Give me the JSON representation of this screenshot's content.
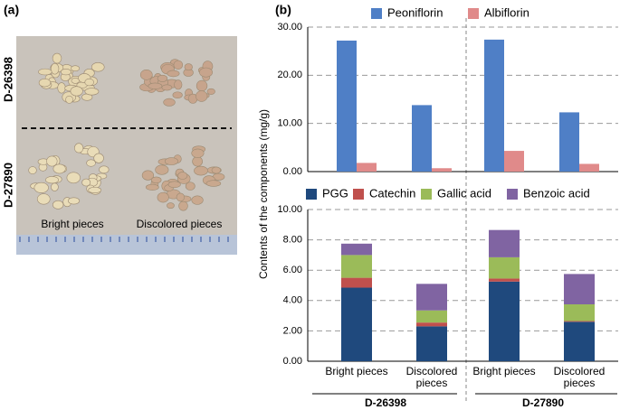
{
  "panel_a": {
    "label": "(a)",
    "rows": [
      "D-26398",
      "D-27890"
    ],
    "columns": [
      "Bright pieces",
      "Discolored pieces"
    ]
  },
  "panel_b": {
    "label": "(b)",
    "ylabel": "Contents of the components (mg/g)",
    "groups": [
      "D-26398",
      "D-27890"
    ]
  },
  "chart_data": [
    {
      "type": "bar",
      "categories": [
        null,
        null,
        null,
        null
      ],
      "series": [
        {
          "name": "Peoniflorin",
          "color": "#4f7fc6",
          "values": [
            27.2,
            13.8,
            27.4,
            12.3
          ]
        },
        {
          "name": "Albiflorin",
          "color": "#e08a8a",
          "values": [
            1.8,
            0.7,
            4.3,
            1.6
          ]
        }
      ],
      "ylim": [
        0,
        30
      ],
      "yticks": [
        {
          "value": 0,
          "label": "0.00"
        },
        {
          "value": 10,
          "label": "10.00"
        },
        {
          "value": 20,
          "label": "20.00"
        },
        {
          "value": 30,
          "label": "30.00"
        }
      ],
      "grid": true
    },
    {
      "type": "stacked-bar",
      "categories": [
        "Bright pieces",
        "Discolored pieces",
        "Bright pieces",
        "Discolored pieces"
      ],
      "series": [
        {
          "name": "PGG",
          "color": "#1f497d",
          "values": [
            4.85,
            2.3,
            5.25,
            2.6
          ]
        },
        {
          "name": "Catechin",
          "color": "#c0504d",
          "values": [
            0.65,
            0.25,
            0.2,
            0.05
          ]
        },
        {
          "name": "Gallic acid",
          "color": "#9bbb59",
          "values": [
            1.5,
            0.8,
            1.4,
            1.1
          ]
        },
        {
          "name": "Benzoic acid",
          "color": "#8064a2",
          "values": [
            0.75,
            1.75,
            1.8,
            2.0
          ]
        }
      ],
      "ylim": [
        0,
        10
      ],
      "yticks": [
        {
          "value": 0,
          "label": "0.00"
        },
        {
          "value": 2,
          "label": "2.00"
        },
        {
          "value": 4,
          "label": "4.00"
        },
        {
          "value": 6,
          "label": "6.00"
        },
        {
          "value": 8,
          "label": "8.00"
        },
        {
          "value": 10,
          "label": "10.00"
        }
      ],
      "grid": true
    }
  ]
}
